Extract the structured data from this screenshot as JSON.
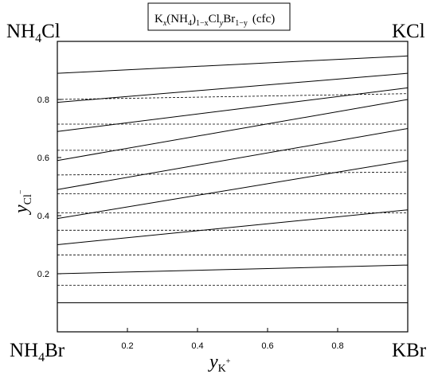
{
  "chart_data": {
    "type": "line",
    "title": "",
    "annotations": {
      "box_label": {
        "K": "K",
        "x": "x",
        "NH4_open": "(NH",
        "four": "4",
        "close": ")",
        "one_minus_x": "1−x",
        "Cl": "Cl",
        "y": "y",
        "Br": "Br",
        "one_minus_y": "1−y",
        "phase": "(cfc)"
      },
      "corner_top_left": {
        "base": "NH",
        "sub": "4",
        "tail": "Cl"
      },
      "corner_top_right": "KCl",
      "corner_bottom_left": {
        "base": "NH",
        "sub": "4",
        "tail": "Br"
      },
      "corner_bottom_right": "KBr"
    },
    "xlabel": {
      "base": "y",
      "sub": "K",
      "sup": "+"
    },
    "ylabel": {
      "base": "y",
      "sub": "Cl",
      "sup": "−"
    },
    "xlim": [
      0,
      1
    ],
    "ylim": [
      0.0,
      1.0
    ],
    "xticks": [
      0.2,
      0.4,
      0.6,
      0.8
    ],
    "yticks": [
      0.2,
      0.4,
      0.6,
      0.8
    ],
    "grid": false,
    "series": [
      {
        "style": "solid",
        "x": [
          0,
          1
        ],
        "y": [
          0.1,
          0.1
        ]
      },
      {
        "style": "dashed",
        "x": [
          0,
          1
        ],
        "y": [
          0.16,
          0.16
        ]
      },
      {
        "style": "solid",
        "x": [
          0,
          1
        ],
        "y": [
          0.2,
          0.23
        ]
      },
      {
        "style": "dashed",
        "x": [
          0,
          1
        ],
        "y": [
          0.265,
          0.265
        ]
      },
      {
        "style": "solid",
        "x": [
          0,
          1
        ],
        "y": [
          0.3,
          0.42
        ]
      },
      {
        "style": "dashed",
        "x": [
          0,
          1
        ],
        "y": [
          0.35,
          0.35
        ]
      },
      {
        "style": "solid",
        "x": [
          0,
          1
        ],
        "y": [
          0.39,
          0.59
        ]
      },
      {
        "style": "dashed",
        "x": [
          0,
          1
        ],
        "y": [
          0.41,
          0.41
        ]
      },
      {
        "style": "dashed",
        "x": [
          0,
          1
        ],
        "y": [
          0.475,
          0.475
        ]
      },
      {
        "style": "solid",
        "x": [
          0,
          1
        ],
        "y": [
          0.49,
          0.7
        ]
      },
      {
        "style": "dashed",
        "x": [
          0,
          1
        ],
        "y": [
          0.54,
          0.55
        ]
      },
      {
        "style": "solid",
        "x": [
          0,
          1
        ],
        "y": [
          0.59,
          0.8
        ]
      },
      {
        "style": "dashed",
        "x": [
          0,
          1
        ],
        "y": [
          0.625,
          0.625
        ]
      },
      {
        "style": "solid",
        "x": [
          0,
          1
        ],
        "y": [
          0.69,
          0.84
        ]
      },
      {
        "style": "dashed",
        "x": [
          0,
          1
        ],
        "y": [
          0.715,
          0.715
        ]
      },
      {
        "style": "solid",
        "x": [
          0,
          1
        ],
        "y": [
          0.79,
          0.89
        ]
      },
      {
        "style": "dashed",
        "x": [
          0,
          1
        ],
        "y": [
          0.8,
          0.82
        ]
      },
      {
        "style": "solid",
        "x": [
          0,
          1
        ],
        "y": [
          0.89,
          0.95
        ]
      }
    ]
  }
}
